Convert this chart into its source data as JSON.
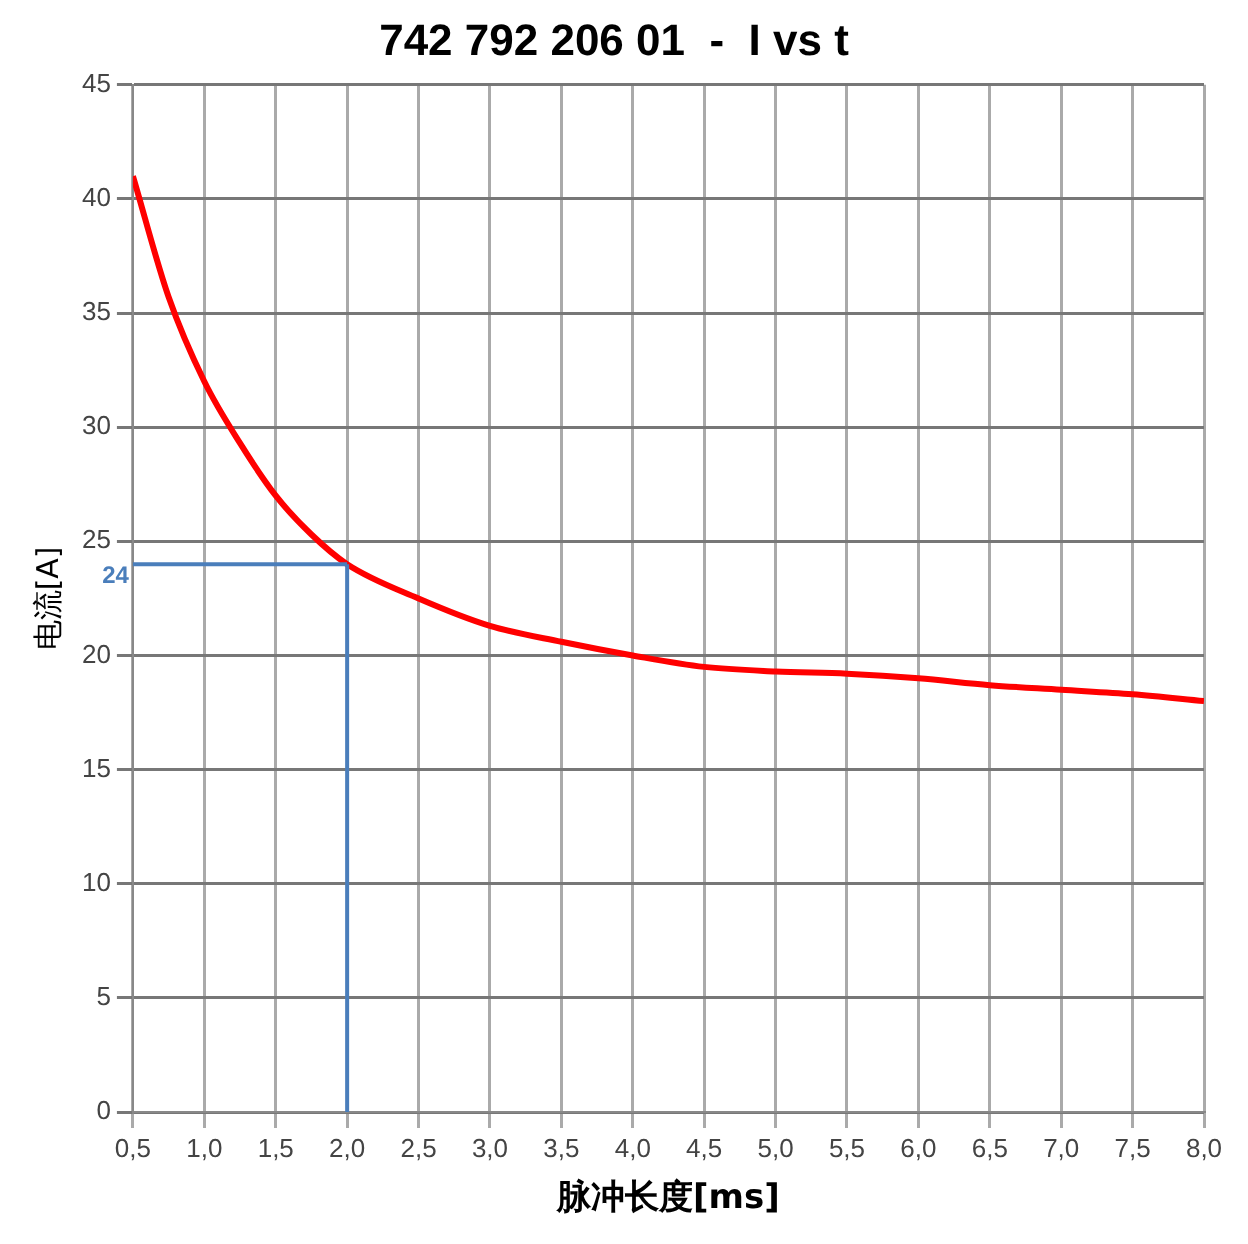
{
  "chart_data": {
    "type": "line",
    "title": "742 792 206 01  -  I vs t",
    "xlabel": "脉冲长度[ms]",
    "ylabel": "电流[A]",
    "x": [
      0.5,
      0.75,
      1.0,
      1.25,
      1.5,
      1.75,
      2.0,
      2.5,
      3.0,
      3.5,
      4.0,
      4.5,
      5.0,
      5.5,
      6.0,
      6.5,
      7.0,
      7.5,
      8.0
    ],
    "series": [
      {
        "color": "#ff0000",
        "values": [
          41,
          35.7,
          32,
          29.3,
          27,
          25.3,
          24,
          22.5,
          21.3,
          20.6,
          20,
          19.5,
          19.3,
          19.2,
          19,
          18.7,
          18.5,
          18.3,
          18
        ]
      }
    ],
    "xlim": [
      0.5,
      8
    ],
    "xticks": [
      {
        "value": 0.5,
        "label": "0,5"
      },
      {
        "value": 1,
        "label": "1,0"
      },
      {
        "value": 1.5,
        "label": "1,5"
      },
      {
        "value": 2,
        "label": "2,0"
      },
      {
        "value": 2.5,
        "label": "2,5"
      },
      {
        "value": 3,
        "label": "3,0"
      },
      {
        "value": 3.5,
        "label": "3,5"
      },
      {
        "value": 4,
        "label": "4,0"
      },
      {
        "value": 4.5,
        "label": "4,5"
      },
      {
        "value": 5,
        "label": "5,0"
      },
      {
        "value": 5.5,
        "label": "5,5"
      },
      {
        "value": 6,
        "label": "6,0"
      },
      {
        "value": 6.5,
        "label": "6,5"
      },
      {
        "value": 7,
        "label": "7,0"
      },
      {
        "value": 7.5,
        "label": "7,5"
      },
      {
        "value": 8,
        "label": "8,0"
      }
    ],
    "ylim": [
      0,
      45
    ],
    "yticks": [
      0,
      5,
      10,
      15,
      20,
      25,
      30,
      35,
      40,
      45
    ],
    "ref_lines": [
      {
        "axis": "x",
        "value": 2,
        "color": "#4a7ebb"
      },
      {
        "axis": "y",
        "value": 24,
        "label": "24",
        "color": "#4a7ebb"
      }
    ],
    "grid": true,
    "legend": false,
    "marker": "none",
    "line_style": "solid"
  }
}
